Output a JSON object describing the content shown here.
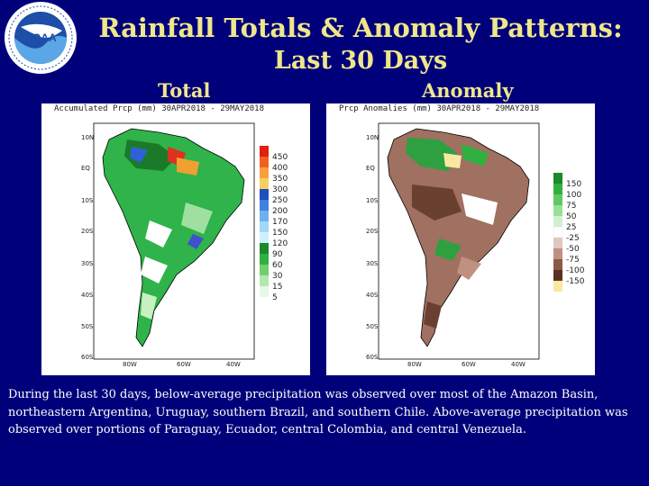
{
  "logo": {
    "text": "NOAA",
    "ring_text": "NATIONAL OCEANIC AND ATMOSPHERIC ADMINISTRATION · U.S. DEPARTMENT OF COMMERCE"
  },
  "title": {
    "line1": "Rainfall Totals & Anomaly Patterns:",
    "line2": "Last 30 Days"
  },
  "panels": {
    "total": {
      "label": "Total",
      "header": "Accumulated Prcp (mm) 30APR2018 - 29MAY2018",
      "lat_ticks": [
        "10N",
        "EQ",
        "10S",
        "20S",
        "30S",
        "40S",
        "50S",
        "60S"
      ],
      "lon_ticks": [
        "80W",
        "60W",
        "40W"
      ],
      "legend": [
        "450",
        "400",
        "350",
        "300",
        "250",
        "200",
        "170",
        "150",
        "120",
        "90",
        "60",
        "30",
        "15",
        "5"
      ]
    },
    "anomaly": {
      "label": "Anomaly",
      "header": "Prcp Anomalies (mm) 30APR2018 - 29MAY2018",
      "lat_ticks": [
        "10N",
        "EQ",
        "10S",
        "20S",
        "30S",
        "40S",
        "50S",
        "60S"
      ],
      "lon_ticks": [
        "80W",
        "60W",
        "40W"
      ],
      "legend": [
        "150",
        "100",
        "75",
        "50",
        "25",
        "-25",
        "-50",
        "-75",
        "-100",
        "-150"
      ]
    }
  },
  "caption": "During the last 30 days, below-average precipitation was observed over most of the Amazon Basin, northeastern Argentina, Uruguay, southern Brazil, and southern Chile.  Above-average precipitation was observed over portions of Paraguay, Ecuador, central Colombia, and central Venezuela.",
  "colors": {
    "background": "#00007a",
    "title": "#f0e68c",
    "caption": "#ffffff"
  }
}
